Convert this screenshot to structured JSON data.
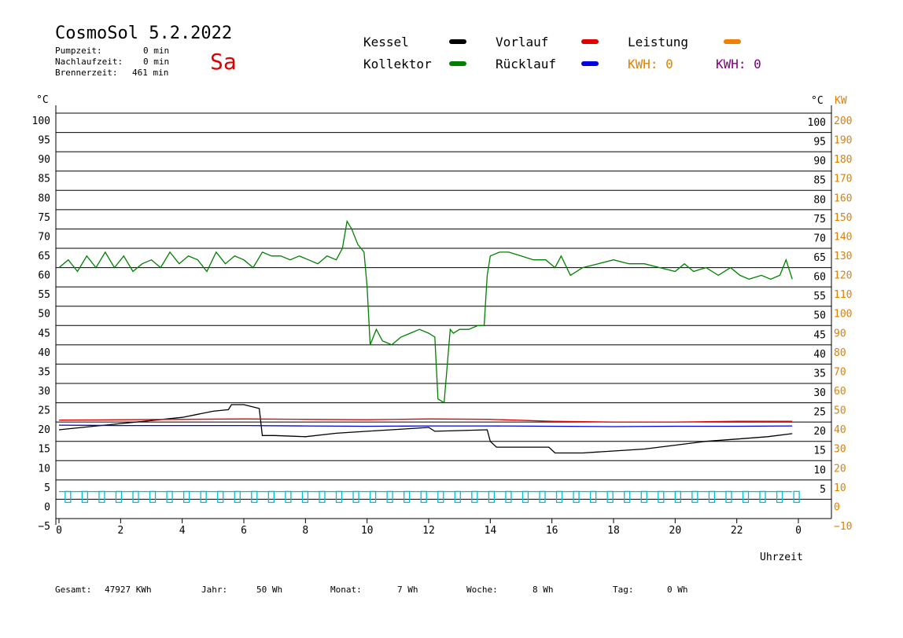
{
  "header": {
    "title": "CosmoSol 5.2.2022",
    "day": "Sa",
    "stats": [
      {
        "label": "Pumpzeit:",
        "value": "0 min"
      },
      {
        "label": "Nachlaufzeit:",
        "value": "0 min"
      },
      {
        "label": "Brennerzeit:",
        "value": "461 min"
      }
    ]
  },
  "legend": {
    "kessel": {
      "label": "Kessel",
      "color": "#000000"
    },
    "kollektor": {
      "label": "Kollektor",
      "color": "#008000"
    },
    "vorlauf": {
      "label": "Vorlauf",
      "color": "#e00000"
    },
    "ruecklauf": {
      "label": "Rücklauf",
      "color": "#0000e0"
    },
    "leistung": {
      "label": "Leistung",
      "color": "#f08000"
    },
    "kwh_orange": {
      "label": "KWH: 0",
      "color": "#e08000"
    },
    "kwh_purple": {
      "label": "KWH: 0",
      "color": "#800080"
    }
  },
  "axes": {
    "left_unit": "°C",
    "right_unit": "°C",
    "kw_unit": "KW",
    "x_label": "Uhrzeit"
  },
  "footer": {
    "gesamt": {
      "label": "Gesamt:",
      "value": "47927 KWh"
    },
    "jahr": {
      "label": "Jahr:",
      "value": "50 Wh"
    },
    "monat": {
      "label": "Monat:",
      "value": "7 Wh"
    },
    "woche": {
      "label": "Woche:",
      "value": "8 Wh"
    },
    "tag": {
      "label": "Tag:",
      "value": "0 Wh"
    }
  },
  "chart_data": {
    "type": "line",
    "xlim": [
      0,
      24
    ],
    "ylim": [
      -5,
      100
    ],
    "y_ticks_left": [
      "100",
      "95",
      "90",
      "85",
      "80",
      "75",
      "70",
      "65",
      "60",
      "55",
      "50",
      "45",
      "40",
      "35",
      "30",
      "25",
      "20",
      "15",
      "10",
      "5",
      "0",
      "−5"
    ],
    "y_ticks_right_c": [
      "100",
      "95",
      "90",
      "85",
      "80",
      "75",
      "70",
      "65",
      "60",
      "55",
      "50",
      "45",
      "40",
      "35",
      "30",
      "25",
      "20",
      "15",
      "10",
      "5"
    ],
    "y_ticks_right_kw": [
      "200",
      "190",
      "180",
      "170",
      "160",
      "150",
      "140",
      "130",
      "120",
      "110",
      "100",
      "90",
      "80",
      "70",
      "60",
      "50",
      "40",
      "30",
      "20",
      "10",
      "0",
      "−10"
    ],
    "x_ticks": [
      "0",
      "2",
      "4",
      "6",
      "8",
      "10",
      "12",
      "14",
      "16",
      "18",
      "20",
      "22",
      "0"
    ],
    "series": [
      {
        "name": "Kollektor",
        "color": "#008000",
        "x": [
          0,
          0.3,
          0.6,
          0.9,
          1.2,
          1.5,
          1.8,
          2.1,
          2.4,
          2.7,
          3.0,
          3.3,
          3.6,
          3.9,
          4.2,
          4.5,
          4.8,
          5.1,
          5.4,
          5.7,
          6.0,
          6.3,
          6.6,
          6.9,
          7.2,
          7.5,
          7.8,
          8.1,
          8.4,
          8.7,
          9.0,
          9.2,
          9.35,
          9.5,
          9.7,
          9.9,
          10.0,
          10.1,
          10.3,
          10.5,
          10.8,
          11.1,
          11.4,
          11.7,
          12.0,
          12.2,
          12.3,
          12.5,
          12.7,
          12.8,
          13.0,
          13.3,
          13.6,
          13.8,
          13.9,
          14.0,
          14.3,
          14.6,
          15.0,
          15.4,
          15.8,
          16.1,
          16.3,
          16.6,
          17.0,
          17.5,
          18.0,
          18.5,
          19.0,
          19.5,
          20.0,
          20.3,
          20.6,
          21.0,
          21.4,
          21.8,
          22.1,
          22.4,
          22.8,
          23.1,
          23.4,
          23.6,
          23.8
        ],
        "y": [
          60,
          62,
          59,
          63,
          60,
          64,
          60,
          63,
          59,
          61,
          62,
          60,
          64,
          61,
          63,
          62,
          59,
          64,
          61,
          63,
          62,
          60,
          64,
          63,
          63,
          62,
          63,
          62,
          61,
          63,
          62,
          65,
          72,
          70,
          66,
          64,
          55,
          40,
          44,
          41,
          40,
          42,
          43,
          44,
          43,
          42,
          26,
          25,
          44,
          43,
          44,
          44,
          45,
          45,
          58,
          63,
          64,
          64,
          63,
          62,
          62,
          60,
          63,
          58,
          60,
          61,
          62,
          61,
          61,
          60,
          59,
          61,
          59,
          60,
          58,
          60,
          58,
          57,
          58,
          57,
          58,
          62,
          57
        ]
      },
      {
        "name": "Kessel",
        "color": "#000000",
        "x": [
          0,
          1,
          2,
          3,
          4,
          4.5,
          5,
          5.5,
          5.6,
          6.0,
          6.5,
          6.6,
          7,
          8,
          9,
          10,
          11,
          12,
          12.2,
          13,
          13.9,
          14.0,
          14.2,
          15,
          15.9,
          16.1,
          17,
          18,
          19,
          20,
          21,
          22,
          23,
          23.8
        ],
        "y": [
          18,
          18.8,
          19.6,
          20.4,
          21.2,
          22,
          22.8,
          23.2,
          24.5,
          24.5,
          23.5,
          16.5,
          16.5,
          16.2,
          17.1,
          17.6,
          18.1,
          18.6,
          17.6,
          17.8,
          18,
          15,
          13.5,
          13.5,
          13.5,
          12,
          12,
          12.5,
          13,
          14,
          15,
          15.6,
          16.2,
          17
        ]
      },
      {
        "name": "Vorlauf",
        "color": "#e00000",
        "x": [
          0,
          2,
          4,
          6,
          8,
          10,
          12,
          14,
          16,
          18,
          20,
          22,
          23.8
        ],
        "y": [
          20.5,
          20.6,
          20.7,
          20.8,
          20.7,
          20.6,
          20.8,
          20.7,
          20.2,
          20,
          20,
          20.2,
          20.2
        ]
      },
      {
        "name": "Rücklauf",
        "color": "#0000e0",
        "x": [
          0,
          2,
          4,
          6,
          8,
          10,
          12,
          14,
          16,
          18,
          20,
          22,
          23.8
        ],
        "y": [
          19.2,
          19.1,
          19.1,
          19.1,
          19,
          18.9,
          19,
          19,
          18.9,
          18.8,
          18.9,
          18.9,
          19
        ]
      },
      {
        "name": "Pumpe",
        "color": "#00c0d0",
        "x": [
          0,
          23.8
        ],
        "y": [
          2,
          2
        ]
      }
    ]
  }
}
